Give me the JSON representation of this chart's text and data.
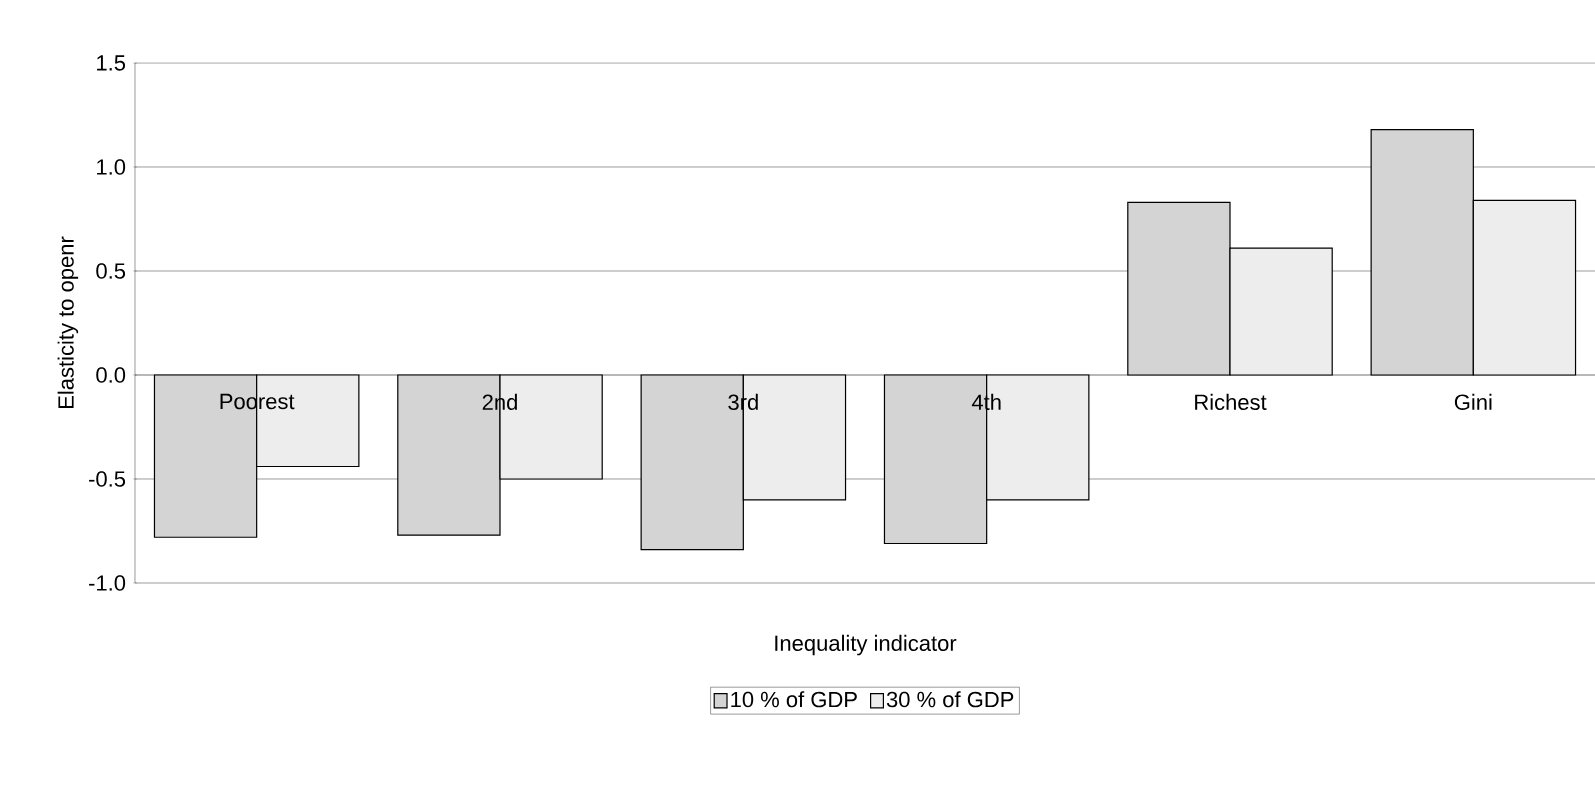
{
  "chart_data": {
    "type": "bar",
    "xlabel": "Inequality indicator",
    "ylabel": "Elasticity to openr",
    "categories": [
      "Poorest",
      "2nd",
      "3rd",
      "4th",
      "Richest",
      "Gini"
    ],
    "series": [
      {
        "name": "10 % of GDP",
        "color": "#d4d4d4",
        "values": [
          -0.78,
          -0.77,
          -0.84,
          -0.81,
          0.83,
          1.18
        ]
      },
      {
        "name": "30 % of GDP",
        "color": "#ededed",
        "values": [
          -0.44,
          -0.5,
          -0.6,
          -0.6,
          0.61,
          0.84
        ]
      }
    ],
    "ylim": [
      -1.0,
      1.5
    ],
    "yticks": [
      {
        "value": -1.0,
        "label": "-1.0"
      },
      {
        "value": -0.5,
        "label": "-0.5"
      },
      {
        "value": 0.0,
        "label": "0.0"
      },
      {
        "value": 0.5,
        "label": "0.5"
      },
      {
        "value": 1.0,
        "label": "1.0"
      },
      {
        "value": 1.5,
        "label": "1.5"
      }
    ],
    "grid": "y",
    "legend": "bottom"
  }
}
